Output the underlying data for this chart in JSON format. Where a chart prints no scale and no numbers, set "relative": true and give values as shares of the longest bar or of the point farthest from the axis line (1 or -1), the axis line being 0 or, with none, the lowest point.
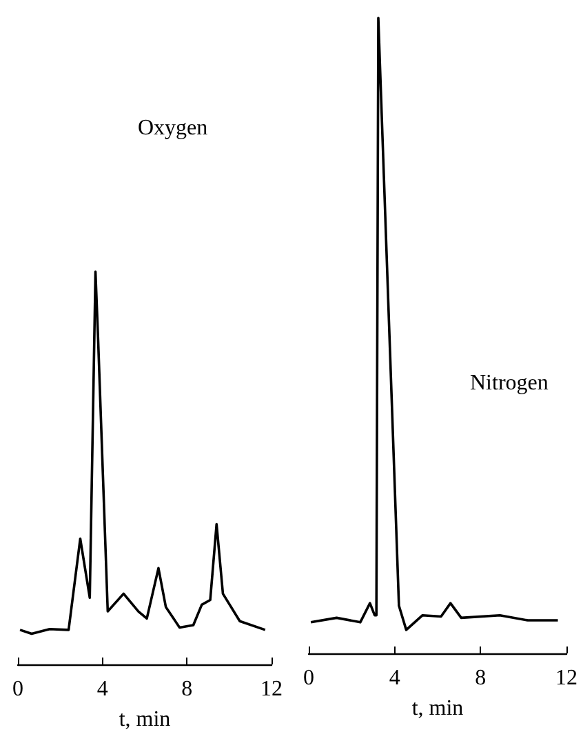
{
  "chart_data": [
    {
      "type": "line",
      "relative": true,
      "xlabel": "t, min",
      "xlim": [
        0,
        12
      ],
      "xticks": [
        0,
        4,
        8,
        12
      ],
      "grid": false,
      "legend": false,
      "marker": "none",
      "line_style": "solid",
      "tick_labels": "x",
      "series": [
        {
          "name": "Oxygen",
          "color": "#000000",
          "x": [
            0.1,
            0.65,
            1.5,
            2.4,
            2.95,
            3.4,
            3.67,
            3.8,
            4.25,
            5.0,
            5.7,
            6.1,
            6.65,
            7.0,
            7.65,
            8.3,
            8.7,
            9.1,
            9.4,
            9.7,
            10.5,
            11.7
          ],
          "values": [
            0.088,
            0.078,
            0.09,
            0.088,
            0.32,
            0.17,
            1.0,
            0.82,
            0.135,
            0.18,
            0.135,
            0.117,
            0.245,
            0.146,
            0.094,
            0.1,
            0.152,
            0.164,
            0.357,
            0.18,
            0.11,
            0.088
          ]
        }
      ]
    },
    {
      "type": "line",
      "relative": true,
      "xlabel": "t, min",
      "xlim": [
        0,
        12
      ],
      "xticks": [
        0,
        4,
        8,
        12
      ],
      "grid": false,
      "legend": false,
      "marker": "none",
      "line_style": "solid",
      "tick_labels": "x",
      "series": [
        {
          "name": "Nitrogen",
          "color": "#000000",
          "x": [
            0.1,
            1.3,
            2.4,
            2.85,
            3.07,
            3.15,
            3.24,
            4.2,
            4.54,
            5.3,
            6.16,
            6.6,
            7.1,
            8.9,
            10.2,
            11.6
          ],
          "values": [
            0.049,
            0.056,
            0.049,
            0.079,
            0.06,
            0.06,
            1.0,
            0.075,
            0.037,
            0.06,
            0.058,
            0.079,
            0.056,
            0.06,
            0.052,
            0.052
          ]
        }
      ]
    }
  ]
}
